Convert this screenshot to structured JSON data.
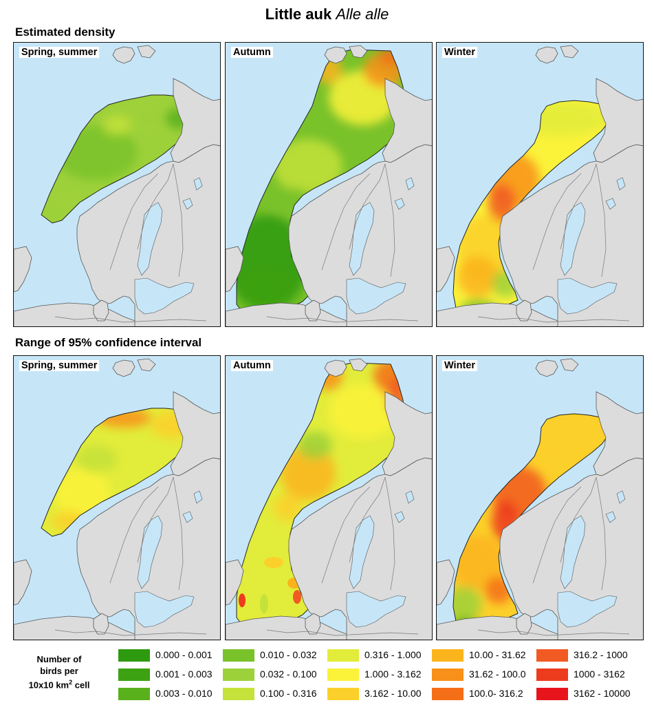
{
  "title": {
    "species": "Little auk",
    "latin": "Alle alle"
  },
  "sections": {
    "density": "Estimated density",
    "ci": "Range of 95% confidence interval"
  },
  "panels": {
    "density": [
      {
        "season": "Spring, summer",
        "scheme": "spring"
      },
      {
        "season": "Autumn",
        "scheme": "autumn"
      },
      {
        "season": "Winter",
        "scheme": "winter"
      }
    ],
    "ci": [
      {
        "season": "Spring, summer",
        "scheme": "spring"
      },
      {
        "season": "Autumn",
        "scheme": "autumn"
      },
      {
        "season": "Winter",
        "scheme": "winter"
      }
    ]
  },
  "colors": {
    "sea": "#c6e6f8",
    "land": "#dcdcdc",
    "border": "#555555"
  },
  "legend": {
    "title_line1": "Number of",
    "title_line2": "birds per",
    "title_line3": "10x10 km",
    "title_sup": "2",
    "title_line3_end": " cell",
    "classes": [
      {
        "label": "0.000 - 0.001",
        "color": "#2e9a0f"
      },
      {
        "label": "0.001 - 0.003",
        "color": "#3da212"
      },
      {
        "label": "0.003 - 0.010",
        "color": "#59b11c"
      },
      {
        "label": "0.010 - 0.032",
        "color": "#79c22a"
      },
      {
        "label": "0.032 - 0.100",
        "color": "#9dd13a"
      },
      {
        "label": "0.100 - 0.316",
        "color": "#c4e23a"
      },
      {
        "label": "0.316 - 1.000",
        "color": "#e2ec3a"
      },
      {
        "label": "1.000 - 3.162",
        "color": "#fbf23a"
      },
      {
        "label": "3.162 - 10.00",
        "color": "#fcd02a"
      },
      {
        "label": "10.00 - 31.62",
        "color": "#fbb41c"
      },
      {
        "label": "31.62 - 100.0",
        "color": "#f89019"
      },
      {
        "label": "100.0- 316.2",
        "color": "#f56e18"
      },
      {
        "label": "316.2 - 1000",
        "color": "#f15a22"
      },
      {
        "label": "1000 - 3162",
        "color": "#ed3b1e"
      },
      {
        "label": "3162 - 10000",
        "color": "#e8141c"
      }
    ]
  }
}
